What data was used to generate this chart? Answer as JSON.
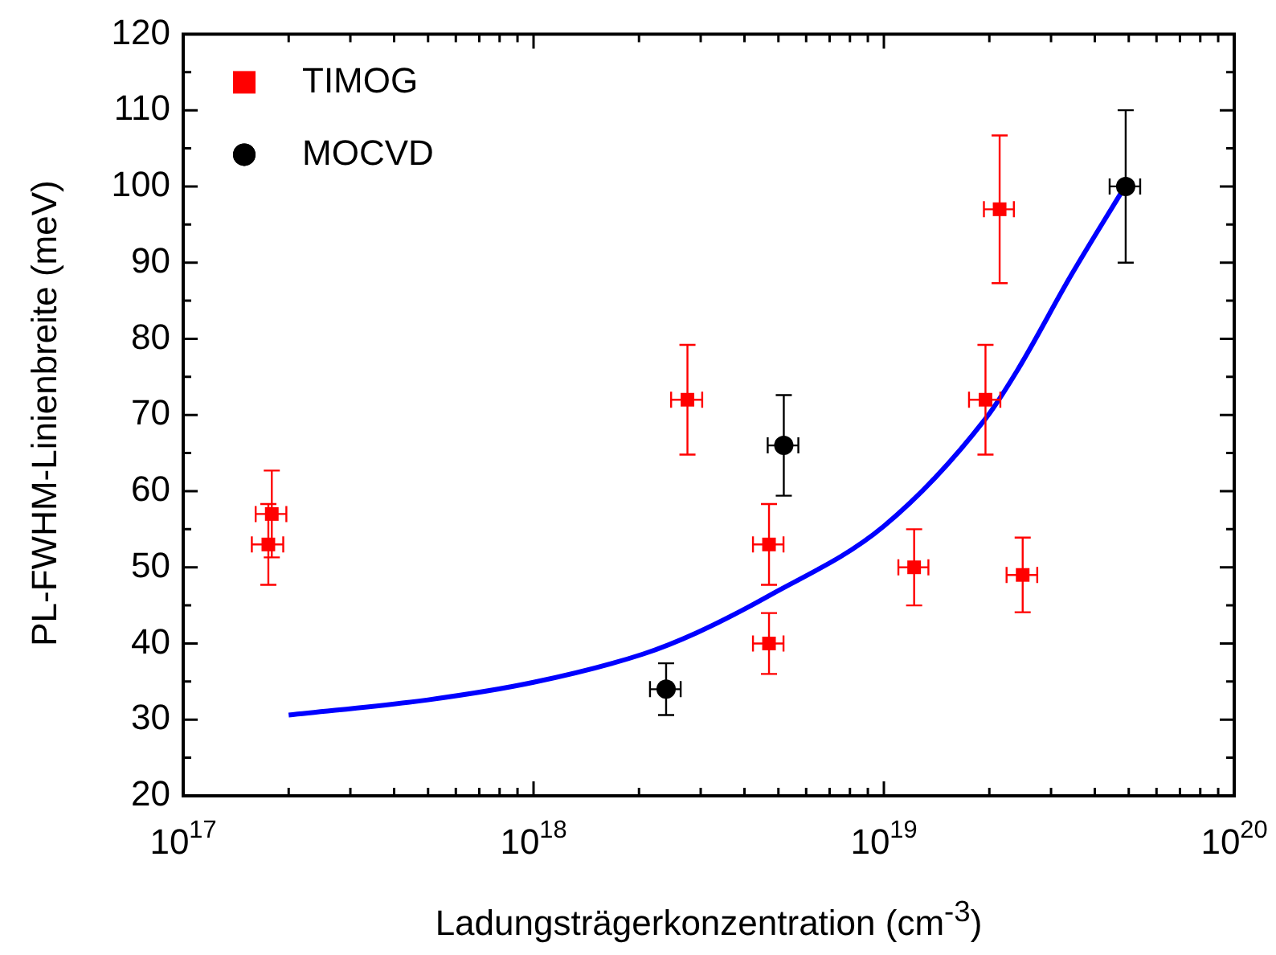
{
  "chart_data": {
    "type": "scatter",
    "xlabel": "Ladungsträgerkonzentration (cm$^{-3}$)",
    "ylabel": "PL-FWHM-Linienbreite (meV)",
    "log": "x",
    "grid": false,
    "legend": "top left",
    "xlim": [
      1e+17,
      1e+20
    ],
    "xticks": [
      {
        "value": 1e+17,
        "label": "10$^{17}$"
      },
      {
        "value": 2e+17,
        "label": null
      },
      {
        "value": 3e+17,
        "label": null
      },
      {
        "value": 4e+17,
        "label": null
      },
      {
        "value": 5e+17,
        "label": null
      },
      {
        "value": 6e+17,
        "label": null
      },
      {
        "value": 7e+17,
        "label": null
      },
      {
        "value": 8e+17,
        "label": null
      },
      {
        "value": 9e+17,
        "label": null
      },
      {
        "value": 1e+18,
        "label": "10$^{18}$"
      },
      {
        "value": 2e+18,
        "label": null
      },
      {
        "value": 3e+18,
        "label": null
      },
      {
        "value": 4e+18,
        "label": null
      },
      {
        "value": 5e+18,
        "label": null
      },
      {
        "value": 6e+18,
        "label": null
      },
      {
        "value": 7e+18,
        "label": null
      },
      {
        "value": 8e+18,
        "label": null
      },
      {
        "value": 9e+18,
        "label": null
      },
      {
        "value": 1e+19,
        "label": "10$^{19}$"
      },
      {
        "value": 2e+19,
        "label": null
      },
      {
        "value": 3e+19,
        "label": null
      },
      {
        "value": 4e+19,
        "label": null
      },
      {
        "value": 5e+19,
        "label": null
      },
      {
        "value": 6e+19,
        "label": null
      },
      {
        "value": 7e+19,
        "label": null
      },
      {
        "value": 8e+19,
        "label": null
      },
      {
        "value": 9e+19,
        "label": null
      },
      {
        "value": 1e+20,
        "label": "10$^{20}$"
      }
    ],
    "ylim": [
      20,
      120
    ],
    "yticks": [
      20,
      {
        "value": 25,
        "label": null
      },
      30,
      {
        "value": 35,
        "label": null
      },
      40,
      {
        "value": 45,
        "label": null
      },
      50,
      {
        "value": 55,
        "label": null
      },
      60,
      {
        "value": 65,
        "label": null
      },
      70,
      {
        "value": 75,
        "label": null
      },
      80,
      {
        "value": 85,
        "label": null
      },
      90,
      {
        "value": 95,
        "label": null
      },
      100,
      {
        "value": 105,
        "label": null
      },
      110,
      {
        "value": 115,
        "label": null
      },
      120
    ],
    "series": [
      {
        "name": "TIMOG",
        "color": "#ff0000",
        "marker": "square",
        "x": [
          1.79e+17,
          1.75e+17,
          2.75e+18,
          4.7e+18,
          4.7e+18,
          1.22e+19,
          1.95e+19,
          2.14e+19,
          2.49e+19
        ],
        "values": [
          57,
          53,
          72,
          53,
          40,
          50,
          72,
          97,
          49
        ],
        "errors": [
          5.7,
          5.3,
          7.2,
          5.3,
          4,
          5,
          7.2,
          9.7,
          4.9
        ],
        "xerrors": [
          1.8e+16,
          1.8e+16,
          2.8e+17,
          4.7e+17,
          4.7e+17,
          1.2e+18,
          2e+18,
          2.1e+18,
          2.5e+18
        ]
      },
      {
        "name": "MOCVD",
        "color": "#000000",
        "marker": "circle",
        "x": [
          2.39e+18,
          5.18e+18,
          4.9e+19
        ],
        "values": [
          34,
          66,
          100
        ],
        "errors": [
          3.4,
          6.6,
          10
        ],
        "xerrors": [
          2.4e+17,
          5.2e+17,
          4.9e+18
        ]
      },
      {
        "type": "line",
        "color": "#0000ff",
        "marker": "none",
        "line_style": "solid",
        "x": [
          2e+17,
          5e+17,
          1e+18,
          2.05e+18,
          2.92e+18,
          4.71e+18,
          1e+19,
          1.95e+19,
          2.4e+19,
          3.43e+19,
          4.88e+19
        ],
        "values": [
          30.6,
          32.6,
          34.9,
          38.6,
          41.4,
          46.3,
          55.4,
          69.5,
          75.8,
          88.4,
          100
        ]
      }
    ]
  }
}
